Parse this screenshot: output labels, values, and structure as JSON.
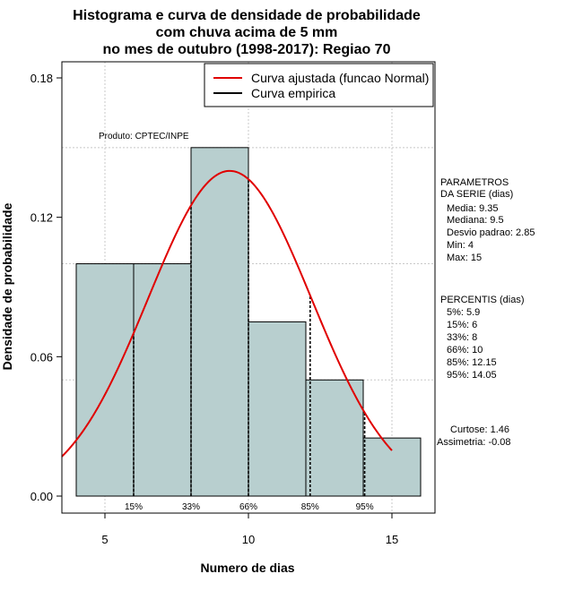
{
  "chart_data": {
    "type": "bar",
    "title_lines": [
      "Histograma e curva de densidade de probabilidade",
      "com chuva acima de 5 mm",
      "no mes de outubro (1998-2017): Regiao 70"
    ],
    "xlabel": "Numero de dias",
    "ylabel": "Densidade de probabilidade",
    "xlim": [
      3.5,
      16.5
    ],
    "ylim": [
      0,
      0.18
    ],
    "x_ticks": [
      "5",
      "10",
      "15"
    ],
    "x_tick_values": [
      5,
      10,
      15
    ],
    "y_ticks": [
      "0.00",
      "0.06",
      "0.12",
      "0.18"
    ],
    "y_tick_values": [
      0.0,
      0.06,
      0.12,
      0.18
    ],
    "grid": true,
    "bar_color": "#b8cfcf",
    "bins": [
      {
        "from": 4,
        "to": 6,
        "density": 0.1
      },
      {
        "from": 6,
        "to": 8,
        "density": 0.1
      },
      {
        "from": 8,
        "to": 10,
        "density": 0.15
      },
      {
        "from": 10,
        "to": 12,
        "density": 0.075
      },
      {
        "from": 12,
        "to": 14,
        "density": 0.05
      },
      {
        "from": 14,
        "to": 16,
        "density": 0.025
      }
    ],
    "fitted_curve": {
      "name": "Curva ajustada (funcao Normal)",
      "color": "#e00000",
      "mean": 9.35,
      "sd": 2.85,
      "x_range": [
        3.5,
        15
      ]
    },
    "empirical_curve": {
      "name": "Curva empirica",
      "color": "#000000"
    },
    "percentile_lines": [
      {
        "label": "15%",
        "x": 6
      },
      {
        "label": "33%",
        "x": 8
      },
      {
        "label": "66%",
        "x": 10
      },
      {
        "label": "85%",
        "x": 12.15
      },
      {
        "label": "95%",
        "x": 14.05
      }
    ],
    "legend_position": "top-right",
    "annotations": {
      "produto": "Produto: CPTEC/INPE",
      "parametros_title": [
        "PARAMETROS",
        "DA SERIE (dias)"
      ],
      "parametros": [
        "Media: 9.35",
        "Mediana: 9.5",
        "Desvio padrao: 2.85",
        "Min: 4",
        "Max: 15"
      ],
      "percentis_title": "PERCENTIS (dias)",
      "percentis": [
        "5%: 5.9",
        "15%: 6",
        "33%: 8",
        "66%: 10",
        "85%: 12.15",
        "95%: 14.05"
      ],
      "curtose": "Curtose: 1.46",
      "assimetria": "Assimetria: -0.08"
    }
  }
}
